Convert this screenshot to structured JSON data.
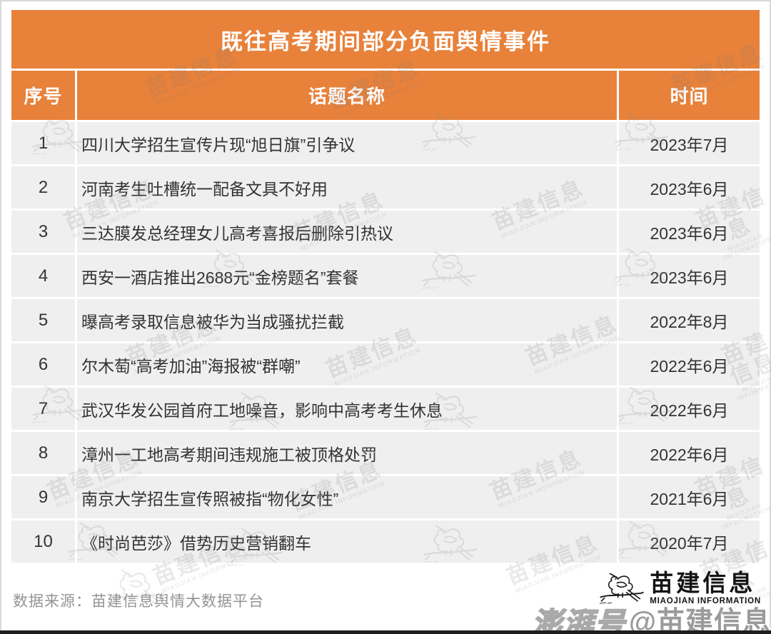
{
  "chart_data": {
    "type": "table",
    "title": "既往高考期间部分负面舆情事件",
    "columns": [
      "序号",
      "话题名称",
      "时间"
    ],
    "rows": [
      {
        "index": "1",
        "topic": "四川大学招生宣传片现“旭日旗”引争议",
        "time": "2023年7月"
      },
      {
        "index": "2",
        "topic": "河南考生吐槽统一配备文具不好用",
        "time": "2023年6月"
      },
      {
        "index": "3",
        "topic": "三达膜发总经理女儿高考喜报后删除引热议",
        "time": "2023年6月"
      },
      {
        "index": "4",
        "topic": "西安一酒店推出2688元“金榜题名”套餐",
        "time": "2023年6月"
      },
      {
        "index": "5",
        "topic": "曝高考录取信息被华为当成骚扰拦截",
        "time": "2022年8月"
      },
      {
        "index": "6",
        "topic": "尔木萄“高考加油”海报被“群嘲”",
        "time": "2022年6月"
      },
      {
        "index": "7",
        "topic": "武汉华发公园首府工地噪音，影响中高考考生休息",
        "time": "2022年6月"
      },
      {
        "index": "8",
        "topic": "漳州一工地高考期间违规施工被顶格处罚",
        "time": "2022年6月"
      },
      {
        "index": "9",
        "topic": "南京大学招生宣传照被指“物化女性”",
        "time": "2021年6月"
      },
      {
        "index": "10",
        "topic": "《时尚芭莎》借势历史营销翻车",
        "time": "2020年7月"
      }
    ],
    "layout": {
      "grid": "rows separated by white gutters",
      "legend": "none"
    }
  },
  "footer": {
    "source_label": "数据来源：苗建信息舆情大数据平台"
  },
  "logo": {
    "name": "苗建信息",
    "subtitle": "MIAOJIAN INFORMATION",
    "icon": "magpie-sketch-icon"
  },
  "watermark": {
    "text": "苗建信息",
    "subtitle": "MIAOJIAN INFORMATION",
    "icon": "magpie-sketch-icon"
  },
  "overlay": {
    "platform_badge": "澎湃号",
    "account_handle": "@苗建信息"
  },
  "colors": {
    "accent": "#E8813A",
    "row_background": "#EFEFEF",
    "header_text": "#FFFFFF",
    "body_text": "#333333",
    "muted_text": "#9A9A9A",
    "bottom_bar": "#1E1E1E"
  }
}
